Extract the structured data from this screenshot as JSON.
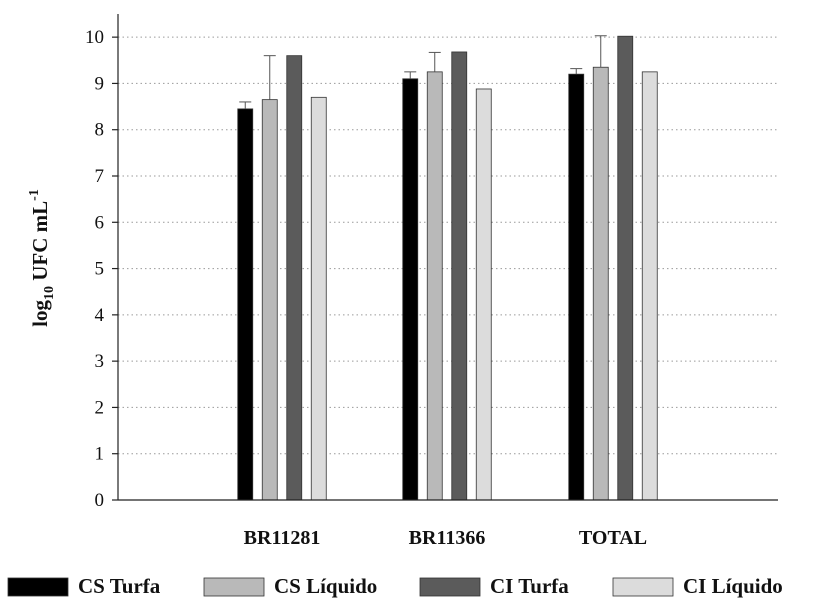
{
  "chart_data": {
    "type": "bar",
    "ylabel": {
      "prefix": "log",
      "sub": "10",
      "main": " UFC mL",
      "sup": "-1"
    },
    "xlabel": "",
    "categories": [
      "BR11281",
      "BR11366",
      "TOTAL"
    ],
    "ylim": [
      0,
      10.5
    ],
    "yticks": [
      "0",
      "1",
      "2",
      "3",
      "4",
      "5",
      "6",
      "7",
      "8",
      "9",
      "10"
    ],
    "grid": true,
    "legend_position": "bottom",
    "series": [
      {
        "name": "CS Turfa",
        "color": "#000000",
        "values": [
          8.45,
          9.1,
          9.2
        ],
        "errors": [
          0.15,
          0.15,
          0.12
        ]
      },
      {
        "name": "CS Líquido",
        "color": "#b9b9b9",
        "values": [
          8.65,
          9.25,
          9.35
        ],
        "errors": [
          0.95,
          0.42,
          0.68
        ]
      },
      {
        "name": "CI Turfa",
        "color": "#5b5b5b",
        "values": [
          9.6,
          9.68,
          10.02
        ],
        "errors": [
          0.0,
          0.0,
          0.0
        ]
      },
      {
        "name": "CI Líquido",
        "color": "#dcdcdc",
        "values": [
          8.7,
          8.88,
          9.25
        ],
        "errors": [
          0.0,
          0.0,
          0.0
        ]
      }
    ]
  }
}
